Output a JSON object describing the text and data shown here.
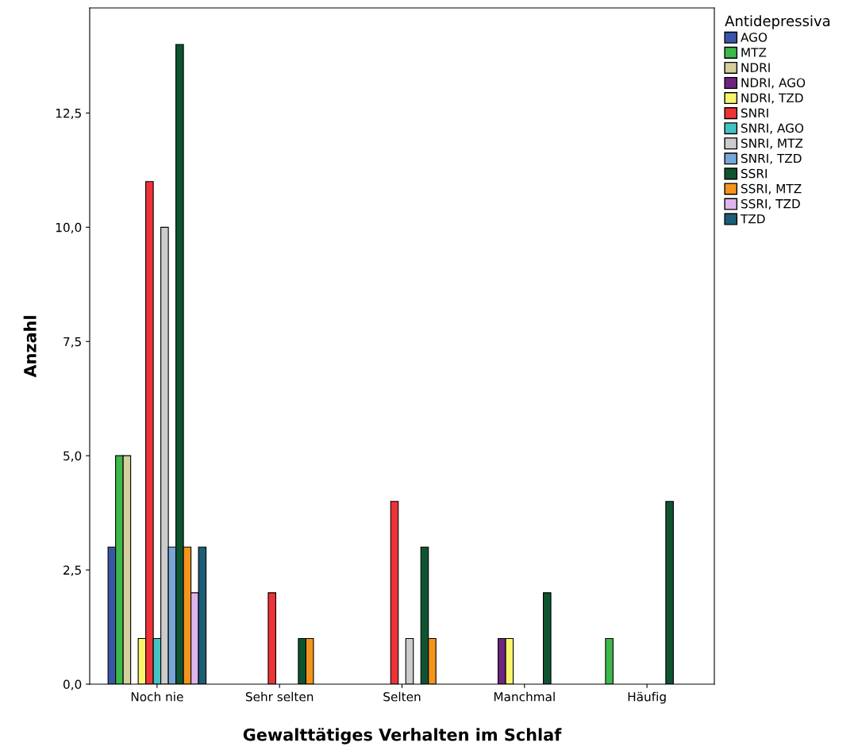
{
  "chart_data": {
    "type": "bar",
    "xlabel": "Gewalttätiges Verhalten im Schlaf",
    "ylabel": "Anzahl",
    "legend_title": "Antidepressiva",
    "legend": "right",
    "grid": false,
    "categories": [
      "Noch nie",
      "Sehr selten",
      "Selten",
      "Manchmal",
      "Häufig"
    ],
    "ylim": [
      0,
      14.8
    ],
    "yticks": [
      {
        "value": 0,
        "label": "0,0"
      },
      {
        "value": 2.5,
        "label": "2,5"
      },
      {
        "value": 5,
        "label": "5,0"
      },
      {
        "value": 7.5,
        "label": "7,5"
      },
      {
        "value": 10,
        "label": "10,0"
      },
      {
        "value": 12.5,
        "label": "12,5"
      }
    ],
    "series": [
      {
        "name": "AGO",
        "color": "#3a56a8",
        "values": [
          3,
          null,
          null,
          null,
          null
        ]
      },
      {
        "name": "MTZ",
        "color": "#3cb94a",
        "values": [
          5,
          null,
          null,
          null,
          1
        ]
      },
      {
        "name": "NDRI",
        "color": "#d4cf9c",
        "values": [
          5,
          null,
          null,
          null,
          null
        ]
      },
      {
        "name": "NDRI, AGO",
        "color": "#6e2580",
        "values": [
          null,
          null,
          null,
          1,
          null
        ]
      },
      {
        "name": "NDRI, TZD",
        "color": "#f8f56c",
        "values": [
          1,
          null,
          null,
          1,
          null
        ]
      },
      {
        "name": "SNRI",
        "color": "#ee3338",
        "values": [
          11,
          2,
          4,
          null,
          null
        ]
      },
      {
        "name": "SNRI, AGO",
        "color": "#45c3c3",
        "values": [
          1,
          null,
          null,
          null,
          null
        ]
      },
      {
        "name": "SNRI, MTZ",
        "color": "#cccccc",
        "values": [
          10,
          null,
          1,
          null,
          null
        ]
      },
      {
        "name": "SNRI, TZD",
        "color": "#76a7d8",
        "values": [
          3,
          null,
          null,
          null,
          null
        ]
      },
      {
        "name": "SSRI",
        "color": "#0e5430",
        "values": [
          14,
          1,
          3,
          2,
          4
        ]
      },
      {
        "name": "SSRI, MTZ",
        "color": "#f5941c",
        "values": [
          3,
          1,
          1,
          null,
          null
        ]
      },
      {
        "name": "SSRI, TZD",
        "color": "#dcb5ef",
        "values": [
          2,
          null,
          null,
          null,
          null
        ]
      },
      {
        "name": "TZD",
        "color": "#1d5d78",
        "values": [
          3,
          null,
          null,
          null,
          null
        ]
      }
    ]
  }
}
